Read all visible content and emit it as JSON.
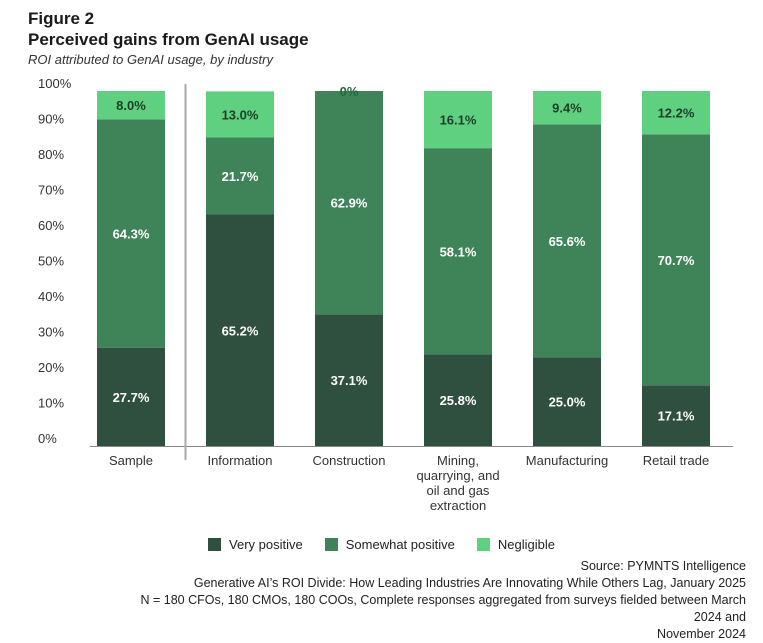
{
  "figure_label": "Figure 2",
  "title": "Perceived gains from GenAI usage",
  "subtitle": "ROI attributed to GenAI usage, by industry",
  "colors": {
    "very_positive": "#2f4f3f",
    "somewhat_positive": "#3e8458",
    "negligible": "#5fd080",
    "axis": "#888888",
    "divider": "#aaaaaa"
  },
  "chart_data": {
    "type": "bar",
    "stacked": true,
    "ylim": [
      0,
      100
    ],
    "yticks": [
      "0%",
      "10%",
      "20%",
      "30%",
      "40%",
      "50%",
      "60%",
      "70%",
      "80%",
      "90%",
      "100%"
    ],
    "categories": [
      "Sample",
      "Information",
      "Construction",
      "Mining, quarrying, and oil and gas extraction",
      "Manufacturing",
      "Retail trade"
    ],
    "category_lines": [
      [
        "Sample"
      ],
      [
        "Information"
      ],
      [
        "Construction"
      ],
      [
        "Mining,",
        "quarrying, and",
        "oil and gas",
        "extraction"
      ],
      [
        "Manufacturing"
      ],
      [
        "Retail trade"
      ]
    ],
    "series": [
      {
        "name": "Very positive",
        "key": "very_positive",
        "values": [
          27.7,
          65.2,
          37.1,
          25.8,
          25.0,
          17.1
        ],
        "labels": [
          "27.7%",
          "65.2%",
          "37.1%",
          "25.8%",
          "25.0%",
          "17.1%"
        ]
      },
      {
        "name": "Somewhat positive",
        "key": "somewhat_positive",
        "values": [
          64.3,
          21.7,
          62.9,
          58.1,
          65.6,
          70.7
        ],
        "labels": [
          "64.3%",
          "21.7%",
          "62.9%",
          "58.1%",
          "65.6%",
          "70.7%"
        ]
      },
      {
        "name": "Negligible",
        "key": "negligible",
        "values": [
          8.0,
          13.0,
          0,
          16.1,
          9.4,
          12.2
        ],
        "labels": [
          "8.0%",
          "13.0%",
          "0%",
          "16.1%",
          "9.4%",
          "12.2%"
        ]
      }
    ],
    "legend_position": "bottom"
  },
  "legend": [
    {
      "label": "Very positive",
      "key": "very_positive"
    },
    {
      "label": "Somewhat positive",
      "key": "somewhat_positive"
    },
    {
      "label": "Negligible",
      "key": "negligible"
    }
  ],
  "notes": {
    "source": "Source: PYMNTS Intelligence",
    "report": "Generative AI’s ROI Divide: How Leading Industries Are Innovating While Others Lag, January 2025",
    "sample_line1": "N = 180 CFOs, 180 CMOs, 180 COOs, Complete responses aggregated from surveys fielded between March 2024 and",
    "sample_line2": "November 2024"
  }
}
